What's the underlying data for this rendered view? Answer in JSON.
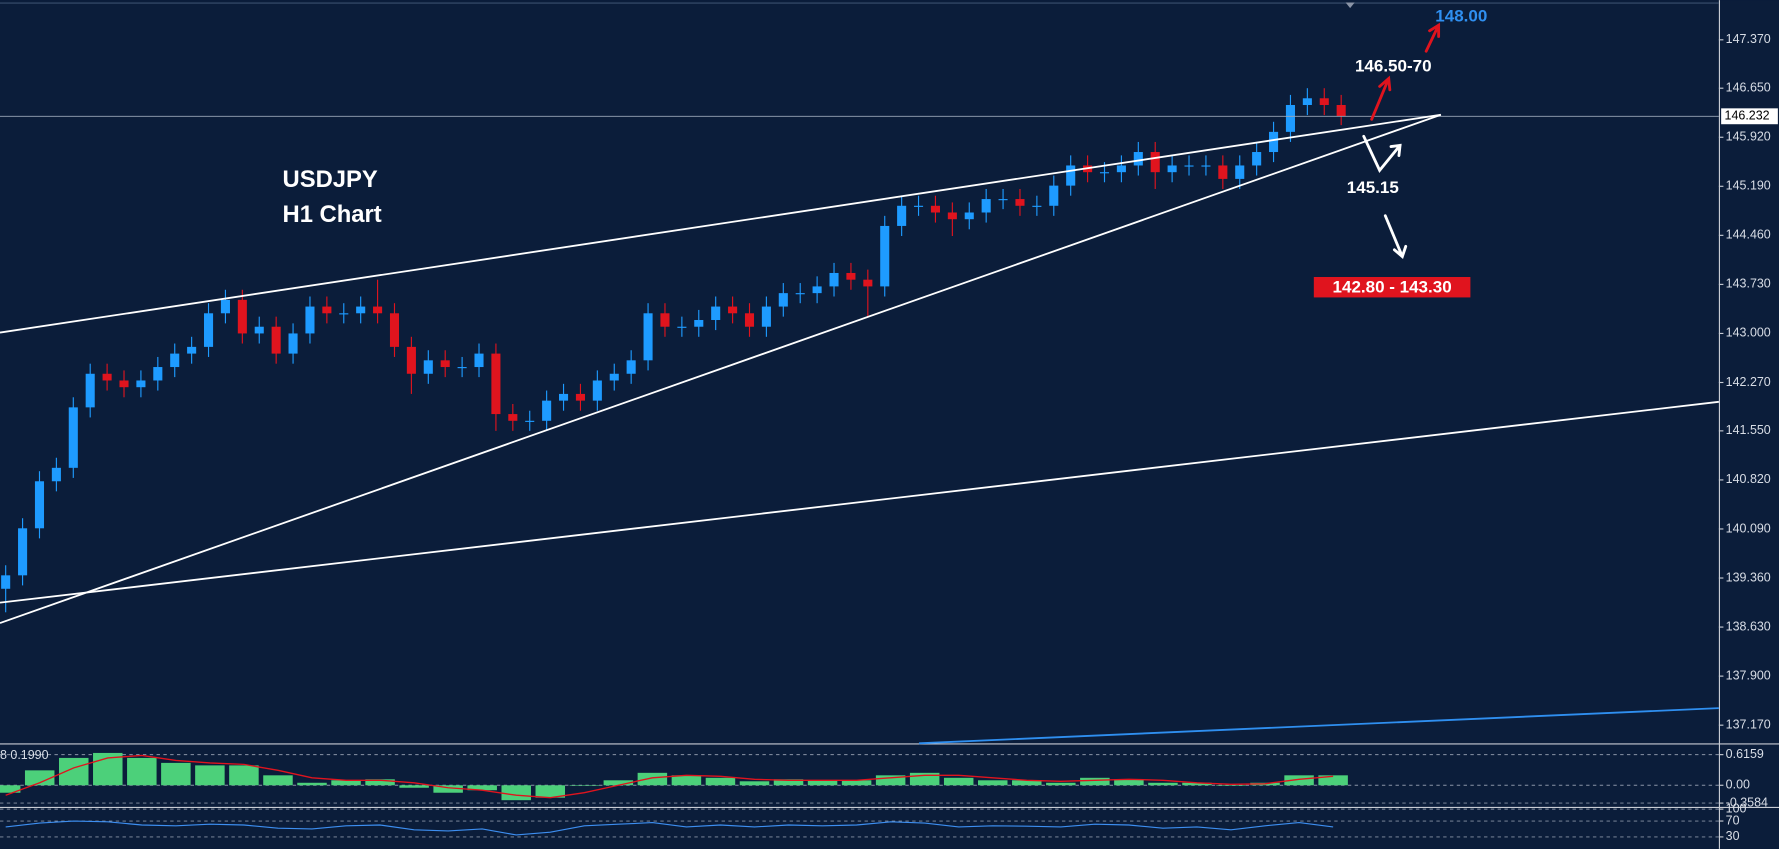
{
  "chart_data": [
    {
      "type": "candlestick",
      "open": [
        139.2,
        139.4,
        140.1,
        140.8,
        141.0,
        141.9,
        142.4,
        142.3,
        142.2,
        142.3,
        142.5,
        142.7,
        142.8,
        143.3,
        143.5,
        143.0,
        143.1,
        142.7,
        143.0,
        143.4,
        143.3,
        143.3,
        143.4,
        143.3,
        142.8,
        142.4,
        142.6,
        142.5,
        142.5,
        142.7,
        141.8,
        141.7,
        141.7,
        142.0,
        142.1,
        142.0,
        142.3,
        142.4,
        142.6,
        143.3,
        143.1,
        143.1,
        143.2,
        143.4,
        143.3,
        143.1,
        143.4,
        143.6,
        143.6,
        143.7,
        143.9,
        143.8,
        143.7,
        144.6,
        144.9,
        144.9,
        144.8,
        144.7,
        144.8,
        145.0,
        145.0,
        144.9,
        144.9,
        145.2,
        145.5,
        145.4,
        145.4,
        145.5,
        145.7,
        145.4,
        145.5,
        145.5,
        145.5,
        145.3,
        145.5,
        145.7,
        146.0,
        146.4,
        146.5,
        146.4
      ],
      "high": [
        139.55,
        140.25,
        140.95,
        141.15,
        142.05,
        142.55,
        142.55,
        142.45,
        142.45,
        142.65,
        142.85,
        142.95,
        143.45,
        143.65,
        143.65,
        143.25,
        143.25,
        143.15,
        143.55,
        143.55,
        143.45,
        143.55,
        143.8,
        143.45,
        142.95,
        142.75,
        142.75,
        142.65,
        142.85,
        142.85,
        141.95,
        141.85,
        142.15,
        142.25,
        142.25,
        142.45,
        142.55,
        142.75,
        143.45,
        143.45,
        143.25,
        143.35,
        143.55,
        143.55,
        143.45,
        143.55,
        143.75,
        143.75,
        143.85,
        144.05,
        144.05,
        143.95,
        144.75,
        145.05,
        145.05,
        145.05,
        144.95,
        144.95,
        145.15,
        145.15,
        145.15,
        145.05,
        145.35,
        145.65,
        145.65,
        145.55,
        145.65,
        145.85,
        145.85,
        145.65,
        145.65,
        145.65,
        145.65,
        145.65,
        145.85,
        146.15,
        146.55,
        146.65,
        146.65,
        146.55
      ],
      "low": [
        138.85,
        139.25,
        139.95,
        140.65,
        140.85,
        141.75,
        142.15,
        142.05,
        142.05,
        142.15,
        142.35,
        142.55,
        142.65,
        143.15,
        142.85,
        142.85,
        142.55,
        142.55,
        142.85,
        143.15,
        143.15,
        143.15,
        143.15,
        142.65,
        142.1,
        142.25,
        142.35,
        142.35,
        142.35,
        141.55,
        141.55,
        141.55,
        141.55,
        141.85,
        141.85,
        141.85,
        142.15,
        142.25,
        142.45,
        142.95,
        142.95,
        142.95,
        143.05,
        143.15,
        142.95,
        142.95,
        143.25,
        143.45,
        143.45,
        143.55,
        143.65,
        143.25,
        143.55,
        144.45,
        144.75,
        144.65,
        144.45,
        144.55,
        144.65,
        144.85,
        144.75,
        144.75,
        144.75,
        145.05,
        145.25,
        145.25,
        145.25,
        145.35,
        145.15,
        145.25,
        145.35,
        145.35,
        145.15,
        145.15,
        145.35,
        145.55,
        145.85,
        146.25,
        146.25,
        146.1
      ],
      "close": [
        139.4,
        140.1,
        140.8,
        141.0,
        141.9,
        142.4,
        142.3,
        142.2,
        142.3,
        142.5,
        142.7,
        142.8,
        143.3,
        143.5,
        143.0,
        143.1,
        142.7,
        143.0,
        143.4,
        143.3,
        143.3,
        143.4,
        143.3,
        142.8,
        142.4,
        142.6,
        142.5,
        142.5,
        142.7,
        141.8,
        141.7,
        141.7,
        142.0,
        142.1,
        142.0,
        142.3,
        142.4,
        142.6,
        143.3,
        143.1,
        143.1,
        143.2,
        143.4,
        143.3,
        143.1,
        143.4,
        143.6,
        143.6,
        143.7,
        143.9,
        143.8,
        143.7,
        144.6,
        144.9,
        144.9,
        144.8,
        144.7,
        144.8,
        145.0,
        145.0,
        144.9,
        144.9,
        145.2,
        145.5,
        145.4,
        145.4,
        145.5,
        145.7,
        145.4,
        145.5,
        145.5,
        145.5,
        145.3,
        145.5,
        145.7,
        146.0,
        146.4,
        146.5,
        146.4,
        146.23
      ],
      "up_color": "#1e9bff",
      "down_color": "#e0141e",
      "ylim": [
        136.9,
        147.96
      ],
      "yticks": [
        {
          "value": 147.37,
          "label": "147.370"
        },
        {
          "value": 146.65,
          "label": "146.650"
        },
        {
          "value": 145.92,
          "label": "145.920"
        },
        {
          "value": 145.19,
          "label": "145.190"
        },
        {
          "value": 144.46,
          "label": "144.460"
        },
        {
          "value": 143.73,
          "label": "143.730"
        },
        {
          "value": 143,
          "label": "143.000"
        },
        {
          "value": 142.27,
          "label": "142.270"
        },
        {
          "value": 141.55,
          "label": "141.550"
        },
        {
          "value": 140.82,
          "label": "140.820"
        },
        {
          "value": 140.09,
          "label": "140.090"
        },
        {
          "value": 139.36,
          "label": "139.360"
        },
        {
          "value": 138.63,
          "label": "138.630"
        },
        {
          "value": 137.9,
          "label": "137.900"
        },
        {
          "value": 137.17,
          "label": "137.170"
        }
      ],
      "current_price": 146.232,
      "title": "USDJPY",
      "subtitle": "H1 Chart",
      "annotations": [
        "148.00",
        "146.50-70",
        "145.15",
        "142.80 - 143.30"
      ]
    },
    {
      "type": "macd",
      "title": "8 0.1990",
      "values": [
        -0.15,
        0.3,
        0.55,
        0.65,
        0.55,
        0.45,
        0.4,
        0.4,
        0.2,
        0.05,
        0.1,
        0.12,
        -0.05,
        -0.15,
        -0.1,
        -0.3,
        -0.25,
        0.0,
        0.1,
        0.25,
        0.2,
        0.15,
        0.08,
        0.12,
        0.1,
        0.1,
        0.2,
        0.25,
        0.15,
        0.1,
        0.1,
        0.05,
        0.15,
        0.12,
        0.05,
        0.05,
        0.0,
        0.05,
        0.2,
        0.2
      ],
      "signal": [
        -0.2,
        0.05,
        0.35,
        0.55,
        0.6,
        0.5,
        0.45,
        0.42,
        0.3,
        0.15,
        0.1,
        0.1,
        0.05,
        -0.05,
        -0.1,
        -0.2,
        -0.25,
        -0.15,
        0.0,
        0.15,
        0.2,
        0.18,
        0.12,
        0.1,
        0.1,
        0.1,
        0.15,
        0.2,
        0.2,
        0.15,
        0.1,
        0.08,
        0.1,
        0.12,
        0.1,
        0.05,
        0.02,
        0.03,
        0.12,
        0.18
      ],
      "color": "#4cd07a",
      "signal_color": "#e0141e",
      "ylim": [
        -0.434,
        0.798
      ],
      "yticks": [
        0.6159,
        {
          "value": 0,
          "label": "0.00"
        },
        -0.3584
      ]
    },
    {
      "type": "line",
      "values": [
        55,
        65,
        70,
        68,
        60,
        58,
        62,
        60,
        52,
        50,
        58,
        60,
        48,
        45,
        50,
        35,
        42,
        58,
        62,
        66,
        55,
        60,
        55,
        60,
        58,
        60,
        68,
        65,
        55,
        58,
        57,
        55,
        62,
        60,
        52,
        55,
        48,
        58,
        66,
        55
      ],
      "color": "#3d8ef0",
      "ylim": [
        0,
        100
      ],
      "yticks": [
        100,
        70,
        30
      ]
    }
  ]
}
